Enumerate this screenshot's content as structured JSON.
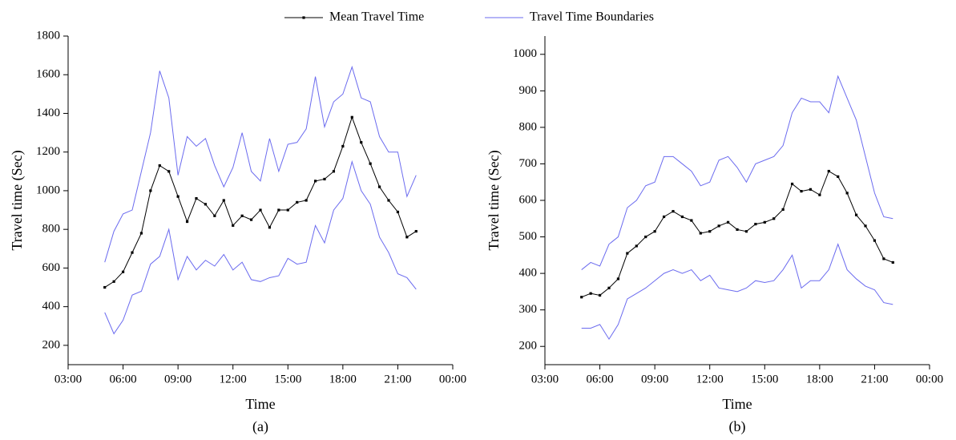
{
  "chart_data": [
    {
      "type": "line",
      "caption": "(a)",
      "x_label": "Time",
      "y_label": "Travel time (Sec)",
      "xlim": [
        3,
        24
      ],
      "xticks": [
        {
          "value": 3,
          "label": "03:00"
        },
        {
          "value": 6,
          "label": "06:00"
        },
        {
          "value": 9,
          "label": "09:00"
        },
        {
          "value": 12,
          "label": "12:00"
        },
        {
          "value": 15,
          "label": "15:00"
        },
        {
          "value": 18,
          "label": "18:00"
        },
        {
          "value": 21,
          "label": "21:00"
        },
        {
          "value": 24,
          "label": "00:00"
        }
      ],
      "ylim": [
        100,
        1800
      ],
      "yticks": [
        200,
        400,
        600,
        800,
        1000,
        1200,
        1400,
        1600,
        1800
      ],
      "x": [
        5,
        5.5,
        6,
        6.5,
        7,
        7.5,
        8,
        8.5,
        9,
        9.5,
        10,
        10.5,
        11,
        11.5,
        12,
        12.5,
        13,
        13.5,
        14,
        14.5,
        15,
        15.5,
        16,
        16.5,
        17,
        17.5,
        18,
        18.5,
        19,
        19.5,
        20,
        20.5,
        21,
        21.5,
        22
      ],
      "series": [
        {
          "name": "Mean Travel Time",
          "color": "#000000",
          "values": [
            500,
            530,
            580,
            680,
            780,
            1000,
            1130,
            1100,
            970,
            840,
            960,
            930,
            870,
            950,
            820,
            870,
            850,
            900,
            810,
            900,
            900,
            940,
            950,
            1050,
            1060,
            1100,
            1230,
            1380,
            1250,
            1140,
            1020,
            950,
            890,
            760,
            790
          ]
        },
        {
          "name": "Travel Time Boundaries",
          "color": "#6b6bef",
          "upper": [
            630,
            790,
            880,
            900,
            1100,
            1300,
            1620,
            1480,
            1080,
            1280,
            1230,
            1270,
            1130,
            1020,
            1120,
            1300,
            1100,
            1050,
            1270,
            1100,
            1240,
            1250,
            1320,
            1590,
            1330,
            1460,
            1500,
            1640,
            1480,
            1460,
            1280,
            1200,
            1200,
            970,
            1080
          ],
          "lower": [
            370,
            260,
            330,
            460,
            480,
            620,
            660,
            800,
            540,
            660,
            590,
            640,
            610,
            670,
            590,
            630,
            540,
            530,
            550,
            560,
            650,
            620,
            630,
            820,
            730,
            900,
            960,
            1150,
            1000,
            930,
            760,
            680,
            570,
            550,
            490
          ]
        }
      ]
    },
    {
      "type": "line",
      "caption": "(b)",
      "x_label": "Time",
      "y_label": "Travel time (Sec)",
      "xlim": [
        3,
        24
      ],
      "xticks": [
        {
          "value": 3,
          "label": "03:00"
        },
        {
          "value": 6,
          "label": "06:00"
        },
        {
          "value": 9,
          "label": "09:00"
        },
        {
          "value": 12,
          "label": "12:00"
        },
        {
          "value": 15,
          "label": "15:00"
        },
        {
          "value": 18,
          "label": "18:00"
        },
        {
          "value": 21,
          "label": "21:00"
        },
        {
          "value": 24,
          "label": "00:00"
        }
      ],
      "ylim": [
        150,
        1050
      ],
      "yticks": [
        200,
        300,
        400,
        500,
        600,
        700,
        800,
        900,
        1000
      ],
      "x": [
        5,
        5.5,
        6,
        6.5,
        7,
        7.5,
        8,
        8.5,
        9,
        9.5,
        10,
        10.5,
        11,
        11.5,
        12,
        12.5,
        13,
        13.5,
        14,
        14.5,
        15,
        15.5,
        16,
        16.5,
        17,
        17.5,
        18,
        18.5,
        19,
        19.5,
        20,
        20.5,
        21,
        21.5,
        22
      ],
      "series": [
        {
          "color": "#000000",
          "values": [
            335,
            345,
            340,
            360,
            385,
            455,
            475,
            500,
            515,
            555,
            570,
            555,
            545,
            510,
            515,
            530,
            540,
            520,
            515,
            535,
            540,
            550,
            575,
            645,
            625,
            630,
            615,
            680,
            665,
            620,
            560,
            530,
            490,
            440,
            430
          ]
        },
        {
          "color": "#6b6bef",
          "upper": [
            410,
            430,
            420,
            480,
            500,
            580,
            600,
            640,
            650,
            720,
            720,
            700,
            680,
            640,
            650,
            710,
            720,
            690,
            650,
            700,
            710,
            720,
            750,
            840,
            880,
            870,
            870,
            840,
            940,
            880,
            820,
            720,
            620,
            555,
            550
          ],
          "lower": [
            250,
            250,
            260,
            220,
            260,
            330,
            345,
            360,
            380,
            400,
            410,
            400,
            410,
            380,
            395,
            360,
            355,
            350,
            360,
            380,
            375,
            380,
            410,
            450,
            360,
            380,
            380,
            410,
            480,
            410,
            385,
            365,
            355,
            320,
            315
          ]
        }
      ]
    }
  ]
}
